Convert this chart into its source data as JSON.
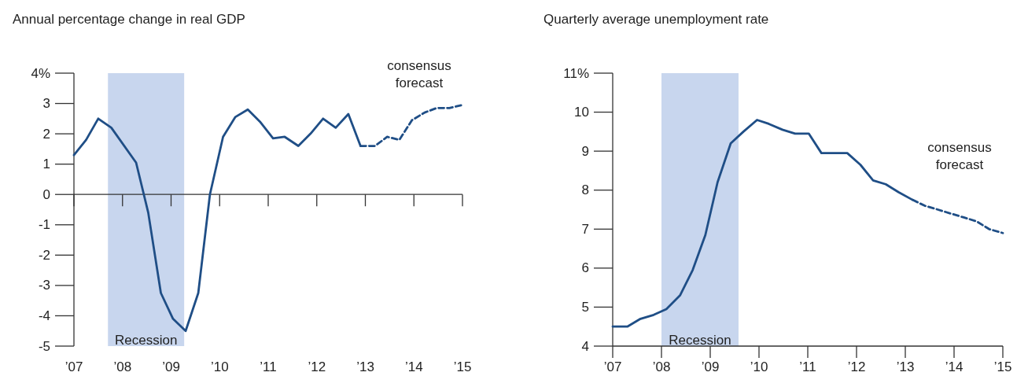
{
  "chart_data": [
    {
      "type": "line",
      "title": "Annual percentage change in real GDP",
      "x": [
        2007,
        2007.25,
        2007.5,
        2007.77,
        2008.28,
        2008.53,
        2008.79,
        2009.04,
        2009.3,
        2009.56,
        2009.8,
        2010.07,
        2010.32,
        2010.58,
        2010.83,
        2011.1,
        2011.34,
        2011.62,
        2011.87,
        2012.13,
        2012.39,
        2012.65,
        2012.9
      ],
      "series": [
        {
          "color": "#1f4e86",
          "line_style": "solid",
          "values": [
            1.3,
            1.8,
            2.5,
            2.2,
            1.05,
            -0.6,
            -3.25,
            -4.1,
            -4.5,
            -3.25,
            0,
            1.9,
            2.55,
            2.8,
            2.4,
            1.85,
            1.9,
            1.6,
            2.0,
            2.5,
            2.2,
            2.65,
            1.6
          ]
        },
        {
          "color": "#1f4e86",
          "line_style": "dashed",
          "x": [
            2012.9,
            2013.2,
            2013.45,
            2013.7,
            2013.96,
            2014.22,
            2014.47,
            2014.73,
            2015
          ],
          "values": [
            1.6,
            1.6,
            1.9,
            1.8,
            2.45,
            2.7,
            2.85,
            2.85,
            2.95
          ]
        }
      ],
      "xlim": [
        2007,
        2015
      ],
      "xticks": [
        {
          "value": 2007,
          "label": "’07"
        },
        {
          "value": 2008,
          "label": "’08"
        },
        {
          "value": 2009,
          "label": "’09"
        },
        {
          "value": 2010,
          "label": "’10"
        },
        {
          "value": 2011,
          "label": "’11"
        },
        {
          "value": 2012,
          "label": "’12"
        },
        {
          "value": 2013,
          "label": "’13"
        },
        {
          "value": 2014,
          "label": "’14"
        },
        {
          "value": 2015,
          "label": "’15"
        }
      ],
      "ylim": [
        -5,
        4
      ],
      "yticks": [
        -5,
        -4,
        -3,
        -2,
        -1,
        0,
        1,
        2,
        3,
        {
          "value": 4,
          "label": "4%"
        }
      ],
      "bands": [
        {
          "axis": "x",
          "from": 2007.7,
          "to": 2009.27,
          "label": "Recession",
          "color": "#c8d6ee"
        }
      ],
      "annotations": [
        "consensus forecast"
      ]
    },
    {
      "type": "line",
      "title": "Quarterly average unemployment rate",
      "x": [
        2007,
        2007.3,
        2007.57,
        2007.84,
        2008.1,
        2008.38,
        2008.64,
        2008.9,
        2009.15,
        2009.42,
        2009.68,
        2009.96,
        2010.2,
        2010.48,
        2010.74,
        2011.02,
        2011.28,
        2011.55,
        2011.81,
        2012.08,
        2012.34,
        2012.6,
        2012.86,
        2013.15
      ],
      "series": [
        {
          "color": "#1f4e86",
          "line_style": "solid",
          "values": [
            4.5,
            4.5,
            4.7,
            4.8,
            4.95,
            5.3,
            5.95,
            6.85,
            8.2,
            9.2,
            9.5,
            9.8,
            9.7,
            9.55,
            9.45,
            9.45,
            8.95,
            8.95,
            8.95,
            8.65,
            8.25,
            8.15,
            7.95,
            7.75
          ]
        },
        {
          "color": "#1f4e86",
          "line_style": "dashed",
          "x": [
            2013.15,
            2013.4,
            2013.67,
            2013.93,
            2014.2,
            2014.46,
            2014.72,
            2015
          ],
          "values": [
            7.75,
            7.6,
            7.5,
            7.4,
            7.3,
            7.2,
            7.0,
            6.9
          ]
        }
      ],
      "xlim": [
        2007,
        2015
      ],
      "xticks": [
        {
          "value": 2007,
          "label": "’07"
        },
        {
          "value": 2008,
          "label": "’08"
        },
        {
          "value": 2009,
          "label": "’09"
        },
        {
          "value": 2010,
          "label": "’10"
        },
        {
          "value": 2011,
          "label": "’11"
        },
        {
          "value": 2012,
          "label": "’12"
        },
        {
          "value": 2013,
          "label": "’13"
        },
        {
          "value": 2014,
          "label": "’14"
        },
        {
          "value": 2015,
          "label": "’15"
        }
      ],
      "ylim": [
        4,
        11
      ],
      "yticks": [
        4,
        5,
        6,
        7,
        8,
        9,
        10,
        {
          "value": 11,
          "label": "11%"
        }
      ],
      "bands": [
        {
          "axis": "x",
          "from": 2008.0,
          "to": 2009.58,
          "label": "Recession",
          "color": "#c8d6ee"
        }
      ],
      "annotations": [
        "consensus forecast"
      ]
    }
  ]
}
